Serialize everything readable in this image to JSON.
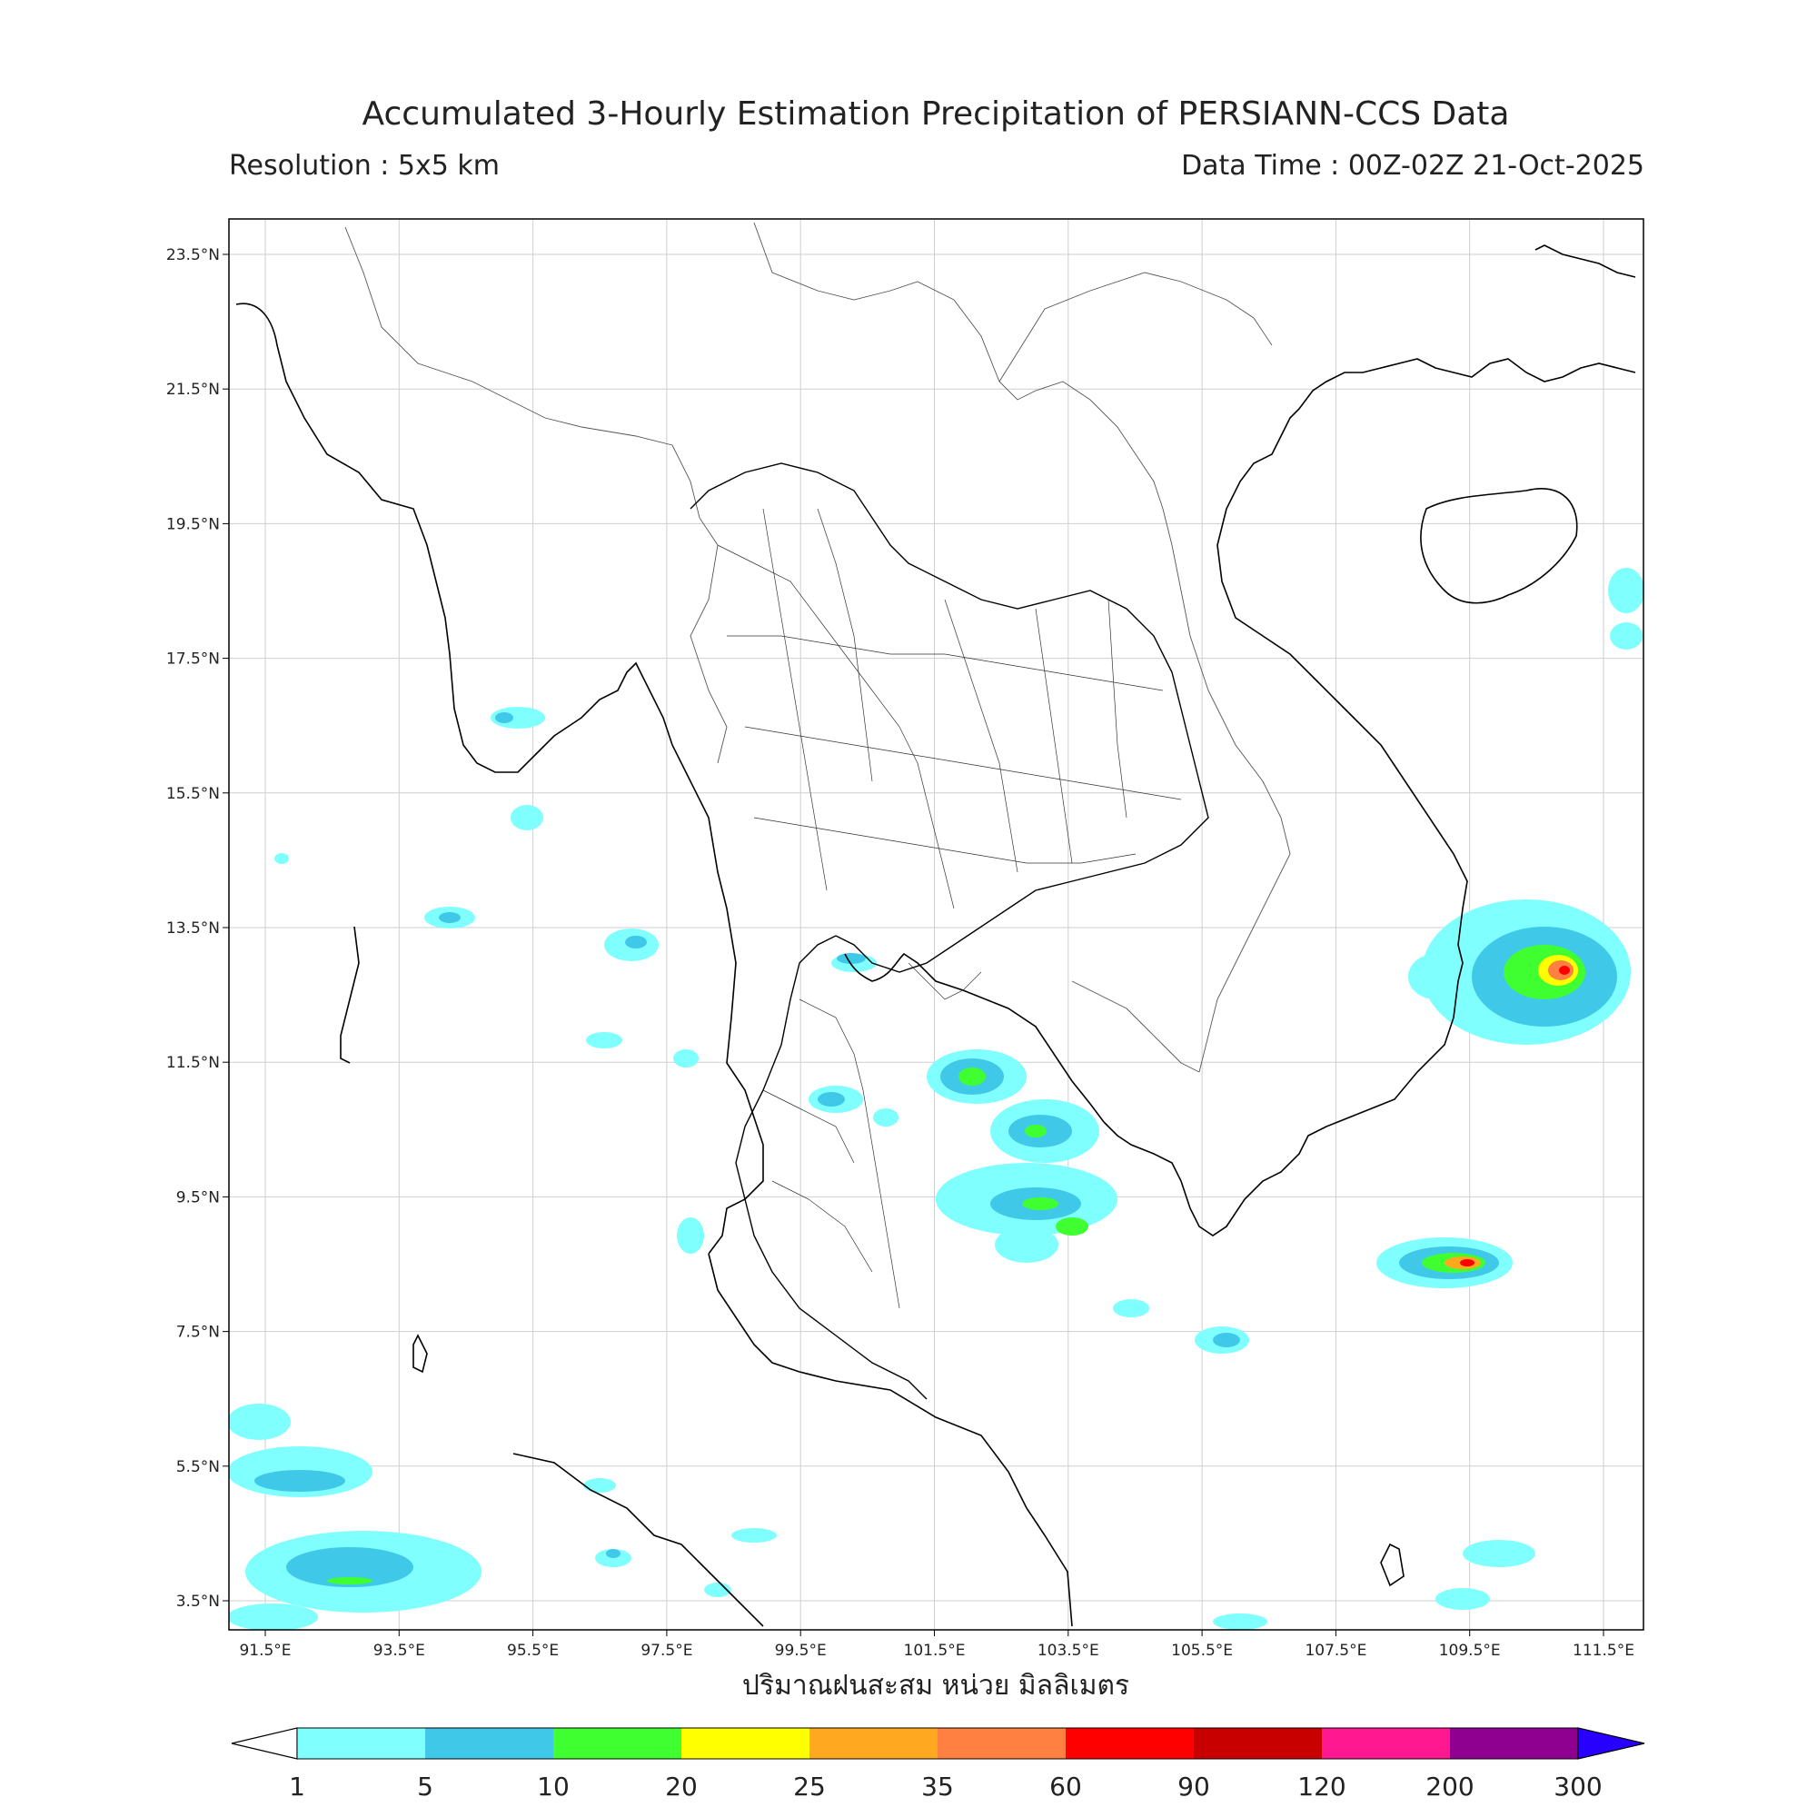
{
  "header": {
    "title": "Accumulated 3-Hourly Estimation Precipitation of PERSIANN-CCS Data",
    "resolution": "Resolution : 5x5 km",
    "data_time": "Data Time : 00Z-02Z 21-Oct-2025"
  },
  "axes": {
    "lon_ticks": [
      "91.5°E",
      "93.5°E",
      "95.5°E",
      "97.5°E",
      "99.5°E",
      "101.5°E",
      "103.5°E",
      "105.5°E",
      "107.5°E",
      "109.5°E",
      "111.5°E"
    ],
    "lat_ticks": [
      "23.5°N",
      "21.5°N",
      "19.5°N",
      "17.5°N",
      "15.5°N",
      "13.5°N",
      "11.5°N",
      "9.5°N",
      "7.5°N",
      "5.5°N",
      "3.5°N"
    ],
    "x_title": "ปริมาณฝนสะสม หน่วย มิลลิเมตร"
  },
  "colorbar": {
    "labels": [
      "1",
      "5",
      "10",
      "20",
      "25",
      "35",
      "60",
      "90",
      "120",
      "200",
      "300"
    ],
    "colors": [
      "#80ffff",
      "#40c8e8",
      "#40ff30",
      "#ffff00",
      "#ffa820",
      "#ff8040",
      "#ff0000",
      "#c80000",
      "#ff1890",
      "#900090",
      "#2800ff"
    ]
  },
  "legend_colors": {
    "c1": "#80ffff",
    "c5": "#40c8e8",
    "c10": "#40ff30",
    "c20": "#ffff00",
    "c25": "#ffa820",
    "c35": "#ff8040",
    "c60": "#ff0000",
    "c90": "#c80000"
  }
}
